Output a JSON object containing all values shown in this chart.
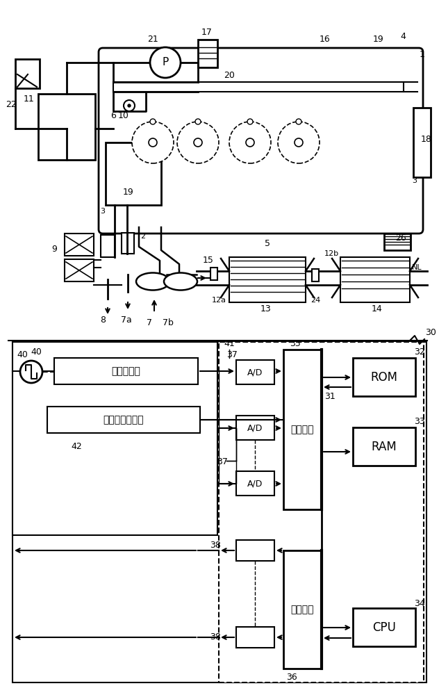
{
  "bg_color": "#ffffff",
  "line_color": "#000000",
  "fig_width": 6.32,
  "fig_height": 10.0,
  "dpi": 100,
  "labels": {
    "load_sensor": "负载传感器",
    "crank_sensor": "曲柄转角传感器",
    "input_port": "输入端口",
    "output_port": "输出端口"
  }
}
